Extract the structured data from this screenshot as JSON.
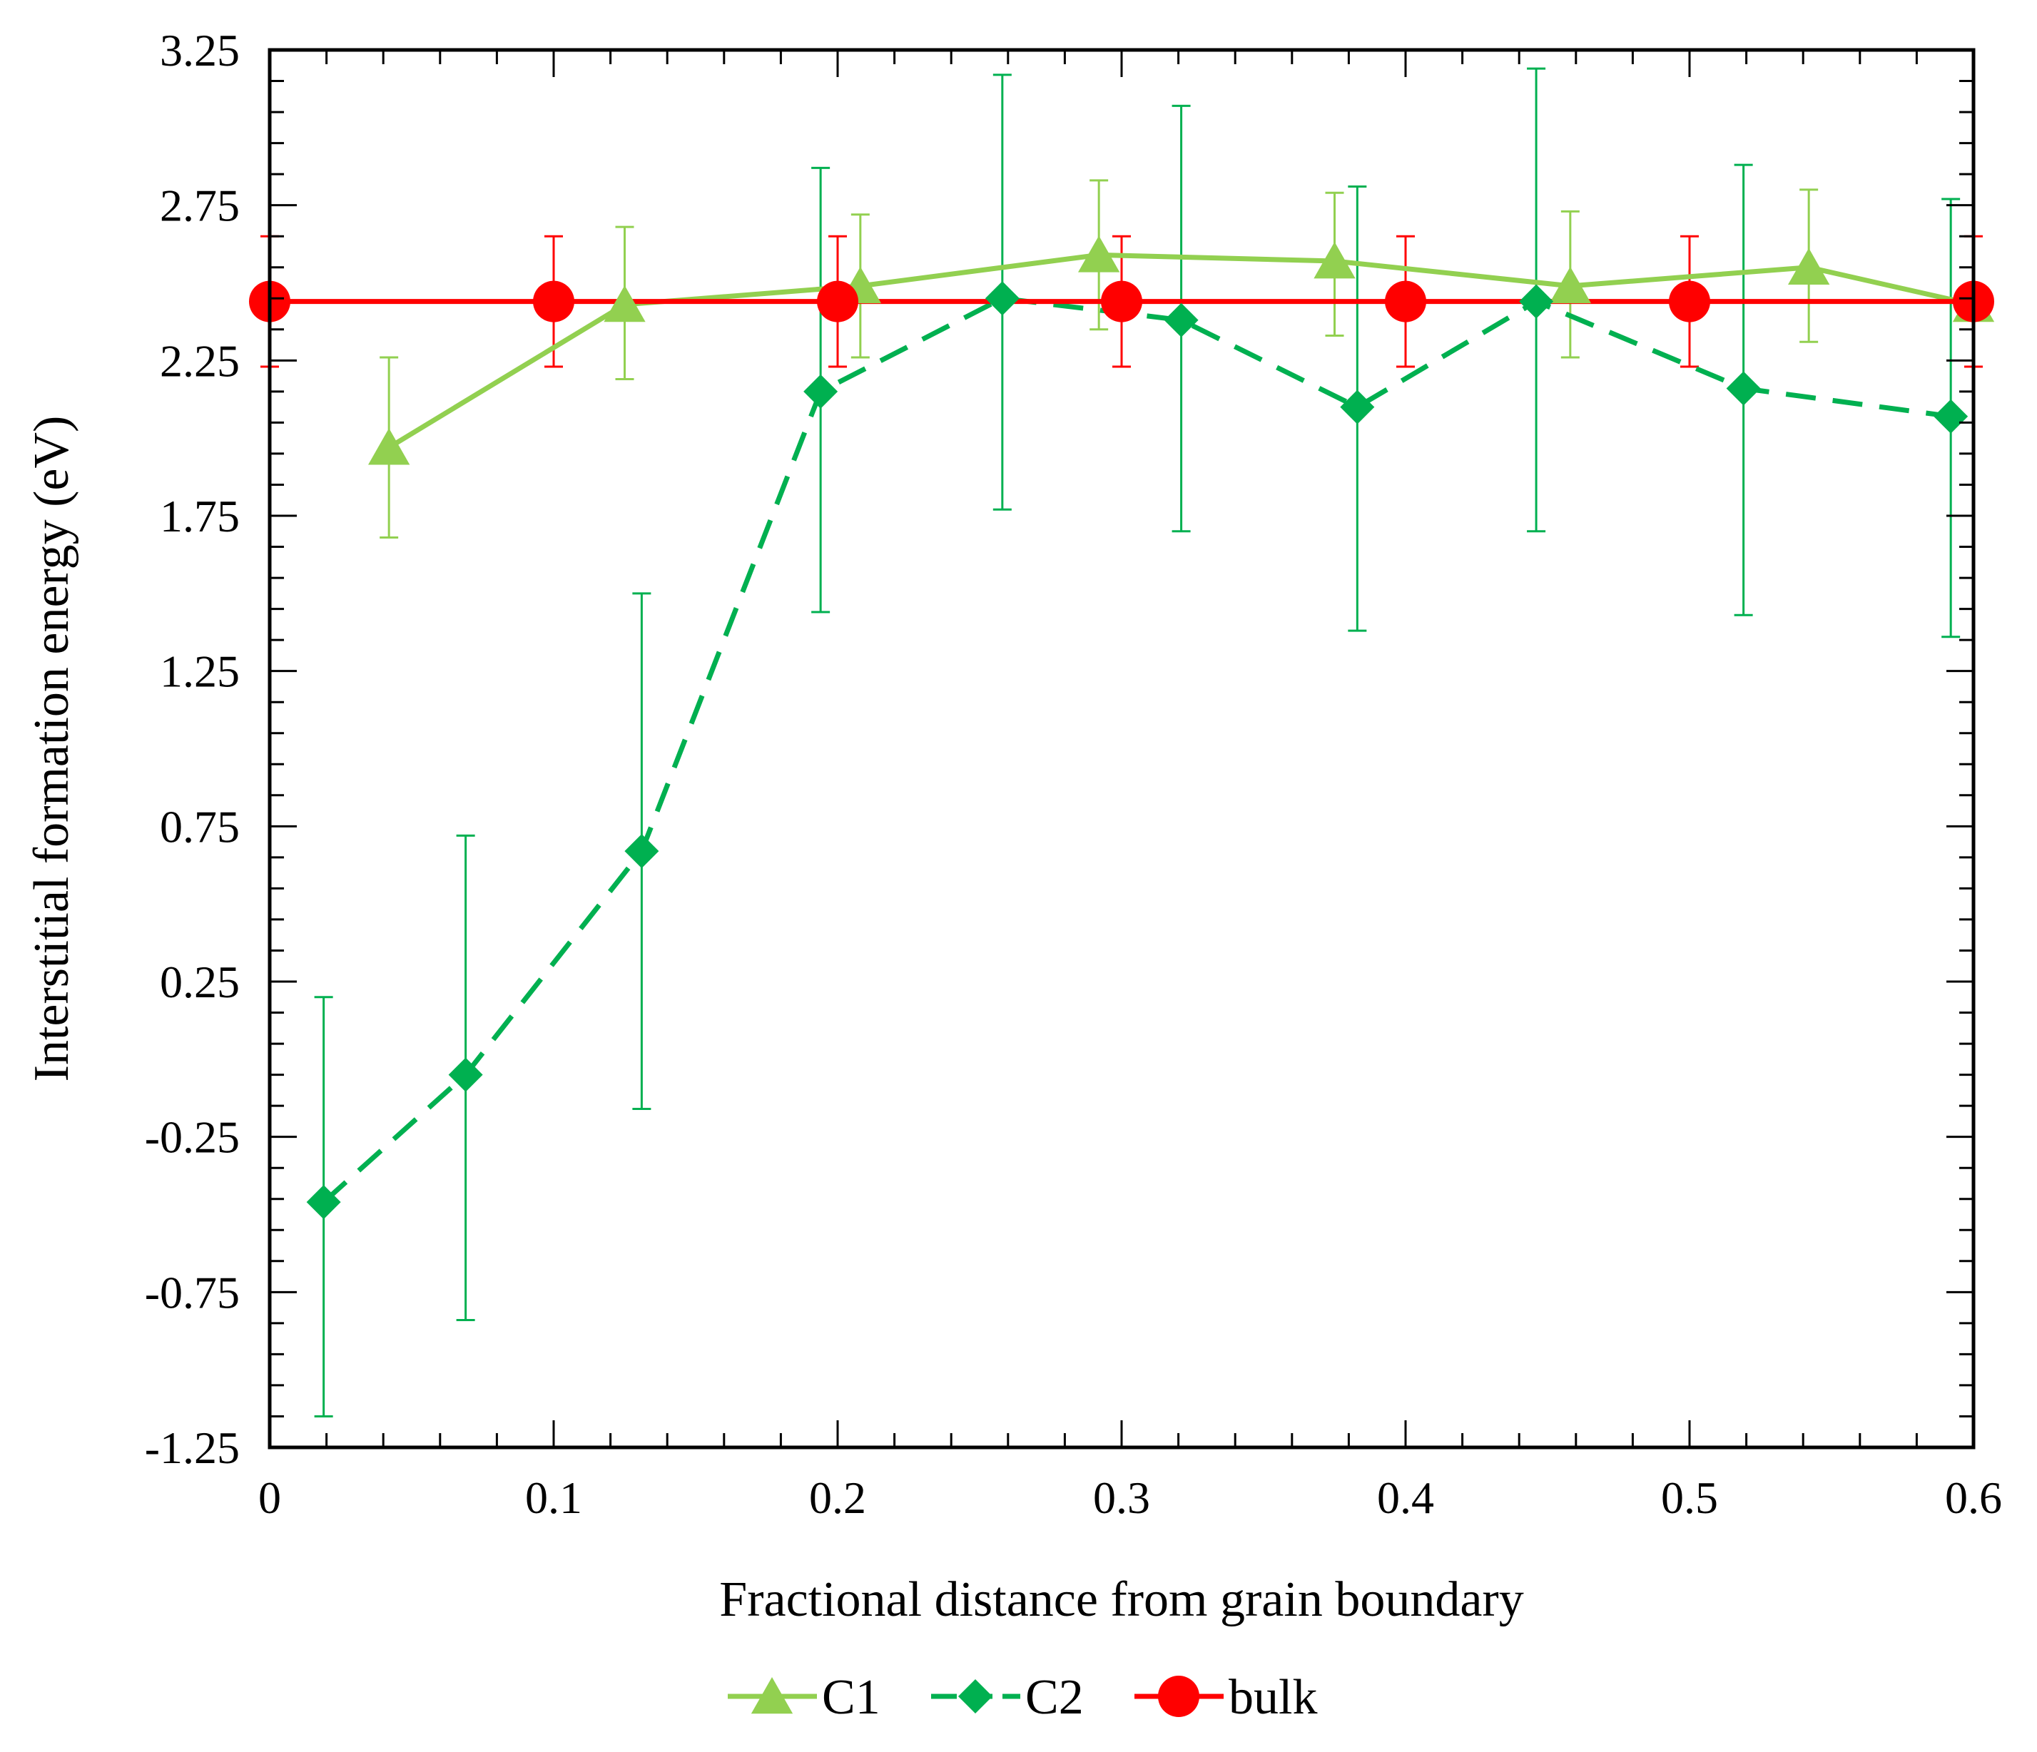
{
  "chart_data": {
    "type": "line",
    "title": "",
    "xlabel": "Fractional distance from grain boundary",
    "ylabel": "Interstitial formation energy (eV)",
    "xlim": [
      0,
      0.6
    ],
    "ylim": [
      -1.25,
      3.25
    ],
    "x_ticks": [
      0,
      0.1,
      0.2,
      0.3,
      0.4,
      0.5,
      0.6
    ],
    "x_tick_labels": [
      "0",
      "0.1",
      "0.2",
      "0.3",
      "0.4",
      "0.5",
      "0.6"
    ],
    "y_ticks": [
      -1.25,
      -0.75,
      -0.25,
      0.25,
      0.75,
      1.25,
      1.75,
      2.25,
      2.75,
      3.25
    ],
    "y_tick_labels": [
      "-1.25",
      "-0.75",
      "-0.25",
      "0.25",
      "0.75",
      "1.25",
      "1.75",
      "2.25",
      "2.75",
      "3.25"
    ],
    "grid": false,
    "legend_position": "bottom-center",
    "series": [
      {
        "name": "C1",
        "color": "#92d050",
        "marker": "triangle",
        "line_style": "solid",
        "x": [
          0.042,
          0.125,
          0.208,
          0.292,
          0.375,
          0.458,
          0.542,
          0.6
        ],
        "y": [
          1.97,
          2.43,
          2.49,
          2.59,
          2.57,
          2.49,
          2.55,
          2.43
        ],
        "err_low": [
          1.68,
          2.19,
          2.26,
          2.35,
          2.33,
          2.26,
          2.31,
          null
        ],
        "err_high": [
          2.26,
          2.68,
          2.72,
          2.83,
          2.79,
          2.73,
          2.8,
          null
        ]
      },
      {
        "name": "C2",
        "color": "#00b050",
        "marker": "diamond",
        "line_style": "dashed",
        "x": [
          0.019,
          0.069,
          0.131,
          0.194,
          0.258,
          0.321,
          0.383,
          0.446,
          0.519,
          0.592
        ],
        "y": [
          -0.46,
          -0.05,
          0.67,
          2.15,
          2.45,
          2.38,
          2.1,
          2.44,
          2.16,
          2.07
        ],
        "err_low": [
          -1.15,
          -0.84,
          -0.16,
          1.44,
          1.77,
          1.7,
          1.38,
          1.7,
          1.43,
          1.36
        ],
        "err_high": [
          0.2,
          0.72,
          1.5,
          2.87,
          3.17,
          3.07,
          2.81,
          3.19,
          2.88,
          2.77
        ]
      },
      {
        "name": "bulk",
        "color": "#ff0000",
        "marker": "circle",
        "line_style": "solid",
        "x": [
          0.0,
          0.1,
          0.2,
          0.3,
          0.4,
          0.5,
          0.6
        ],
        "y": [
          2.44,
          2.44,
          2.44,
          2.44,
          2.44,
          2.44,
          2.44
        ],
        "err_low": [
          2.23,
          2.23,
          2.23,
          2.23,
          2.23,
          2.23,
          2.23
        ],
        "err_high": [
          2.65,
          2.65,
          2.65,
          2.65,
          2.65,
          2.65,
          2.65
        ]
      }
    ]
  }
}
